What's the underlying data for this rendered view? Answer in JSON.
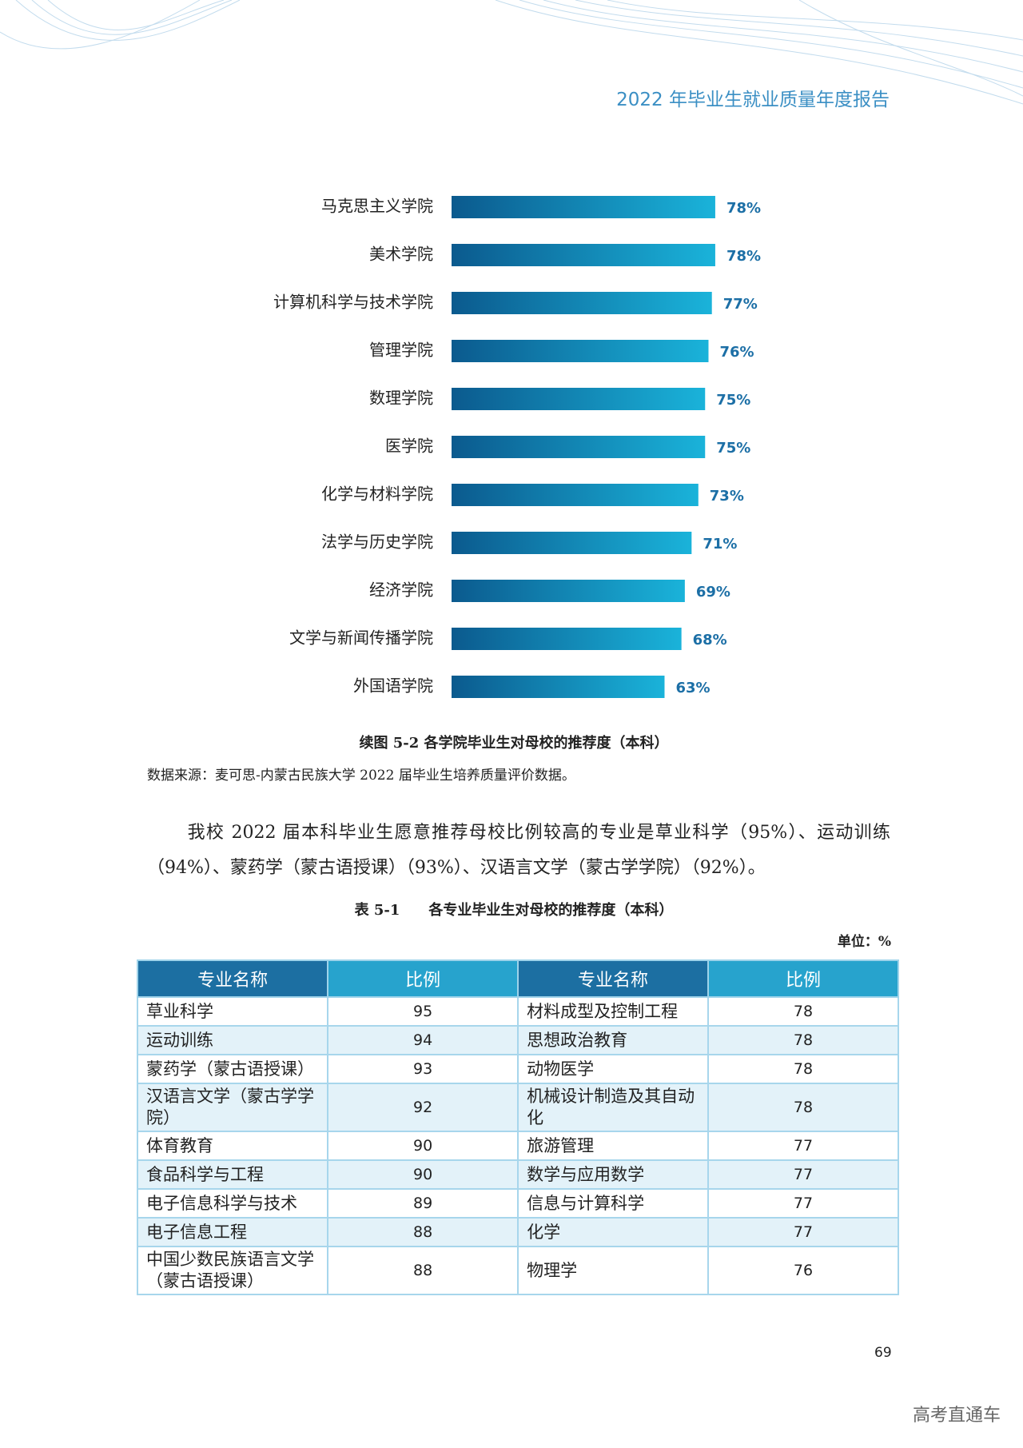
{
  "header": {
    "title": "2022 年毕业生就业质量年度报告"
  },
  "chart_data": {
    "type": "bar",
    "orientation": "horizontal",
    "categories": [
      "马克思主义学院",
      "美术学院",
      "计算机科学与技术学院",
      "管理学院",
      "数理学院",
      "医学院",
      "化学与材料学院",
      "法学与历史学院",
      "经济学院",
      "文学与新闻传播学院",
      "外国语学院"
    ],
    "values": [
      78,
      78,
      77,
      76,
      75,
      75,
      73,
      71,
      69,
      68,
      63
    ],
    "value_labels": [
      "78%",
      "78%",
      "77%",
      "76%",
      "75%",
      "75%",
      "73%",
      "71%",
      "69%",
      "68%",
      "63%"
    ],
    "color": "#1a9ccb"
  },
  "caption": "续图 5-2 各学院毕业生对母校的推荐度（本科）",
  "source": "数据来源：麦可思-内蒙古民族大学 2022 届毕业生培养质量评价数据。",
  "paragraph": "我校 2022 届本科毕业生愿意推荐母校比例较高的专业是草业科学（95%）、运动训练（94%）、蒙药学（蒙古语授课）（93%）、汉语言文学（蒙古学学院）（92%）。",
  "table": {
    "title": "表 5-1　　各专业毕业生对母校的推荐度（本科）",
    "unit": "单位：%",
    "header": [
      "专业名称",
      "比例",
      "专业名称",
      "比例"
    ],
    "rows": [
      [
        "草业科学",
        95,
        "材料成型及控制工程",
        78
      ],
      [
        "运动训练",
        94,
        "思想政治教育",
        78
      ],
      [
        "蒙药学（蒙古语授课）",
        93,
        "动物医学",
        78
      ],
      [
        "汉语言文学（蒙古学学院）",
        92,
        "机械设计制造及其自动化",
        78
      ],
      [
        "体育教育",
        90,
        "旅游管理",
        77
      ],
      [
        "食品科学与工程",
        90,
        "数学与应用数学",
        77
      ],
      [
        "电子信息科学与技术",
        89,
        "信息与计算科学",
        77
      ],
      [
        "电子信息工程",
        88,
        "化学",
        77
      ],
      [
        "中国少数民族语言文学（蒙古语授课）",
        88,
        "物理学",
        76
      ]
    ]
  },
  "page_number": "69",
  "watermark": "高考直通车"
}
